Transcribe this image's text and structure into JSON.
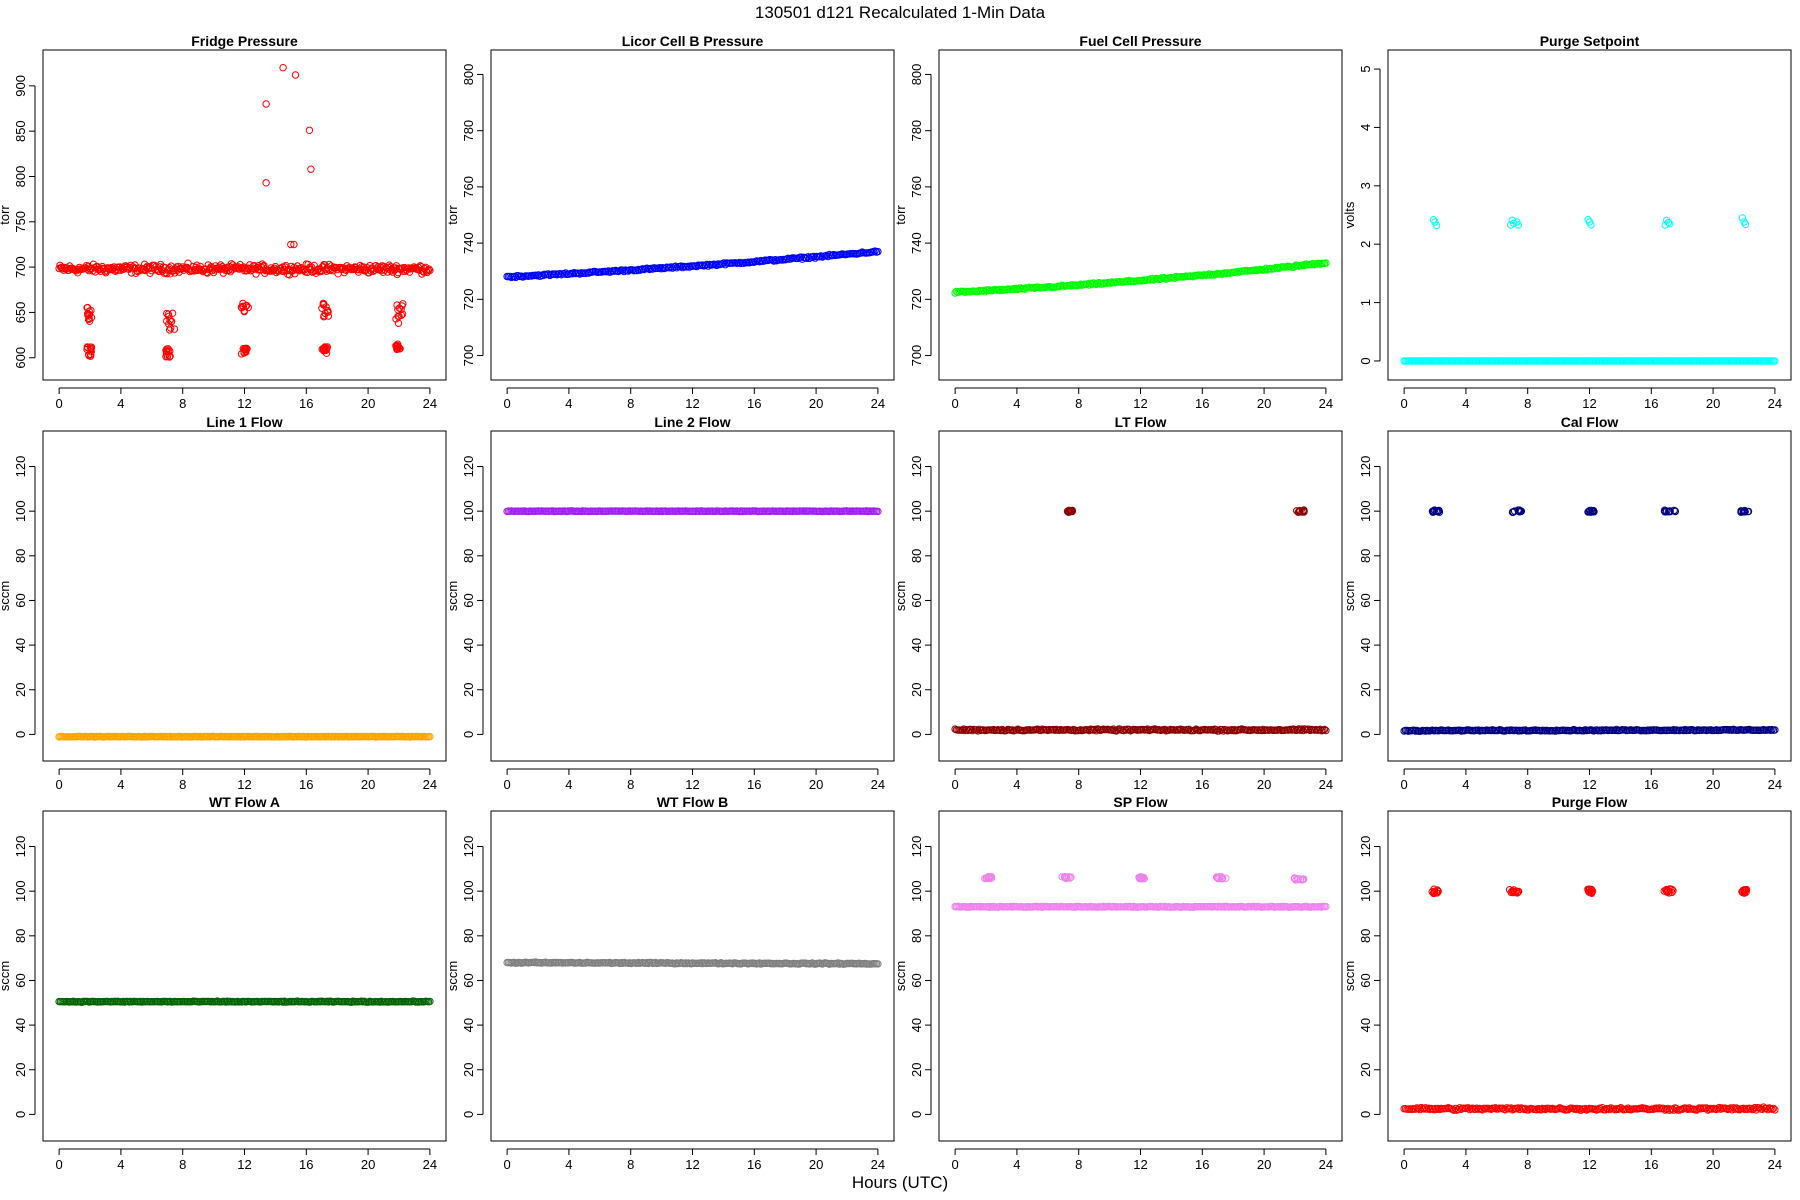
{
  "figure": {
    "title": "130501   d121   Recalculated 1-Min Data",
    "xlabel": "Hours (UTC)"
  },
  "chart_data": [
    {
      "type": "scatter",
      "title": "Fridge Pressure",
      "ylabel": "torr",
      "color": "#ff0000",
      "marker": "open-circle",
      "xlim": [
        0,
        24
      ],
      "ylim": [
        590,
        925
      ],
      "xticks": [
        0,
        4,
        8,
        12,
        16,
        20,
        24
      ],
      "yticks": [
        600,
        650,
        700,
        750,
        800,
        850,
        900
      ],
      "series": [
        {
          "kind": "noise",
          "x_range": [
            0,
            24
          ],
          "mean": 698,
          "spread": 7
        },
        {
          "kind": "cluster",
          "x": [
            1.8,
            2.1
          ],
          "y_range": [
            640,
            658
          ]
        },
        {
          "kind": "cluster",
          "x": [
            1.8,
            2.1
          ],
          "y_range": [
            600,
            612
          ]
        },
        {
          "kind": "cluster",
          "x": [
            6.9,
            7.5
          ],
          "y_range": [
            628,
            658
          ]
        },
        {
          "kind": "cluster",
          "x": [
            6.9,
            7.2
          ],
          "y_range": [
            600,
            610
          ]
        },
        {
          "kind": "cluster",
          "x": [
            11.8,
            12.3
          ],
          "y_range": [
            644,
            660
          ]
        },
        {
          "kind": "cluster",
          "x": [
            11.8,
            12.2
          ],
          "y_range": [
            603,
            612
          ]
        },
        {
          "kind": "cluster",
          "x": [
            17.0,
            17.5
          ],
          "y_range": [
            645,
            660
          ]
        },
        {
          "kind": "cluster",
          "x": [
            17.0,
            17.4
          ],
          "y_range": [
            604,
            612
          ]
        },
        {
          "kind": "cluster",
          "x": [
            21.8,
            22.3
          ],
          "y_range": [
            638,
            665
          ]
        },
        {
          "kind": "cluster",
          "x": [
            21.8,
            22.1
          ],
          "y_range": [
            608,
            615
          ]
        },
        {
          "kind": "points",
          "x": [
            13.4,
            13.4,
            14.5,
            15.0,
            15.3,
            16.2,
            16.3,
            15.2
          ],
          "y": [
            880,
            793,
            920,
            725,
            912,
            851,
            808,
            725
          ]
        }
      ]
    },
    {
      "type": "scatter",
      "title": "Licor Cell B Pressure",
      "ylabel": "torr",
      "color": "#0000ff",
      "marker": "open-circle",
      "xlim": [
        0,
        24
      ],
      "ylim": [
        696,
        804
      ],
      "xticks": [
        0,
        4,
        8,
        12,
        16,
        20,
        24
      ],
      "yticks": [
        700,
        720,
        740,
        760,
        780,
        800
      ],
      "series": [
        {
          "kind": "line",
          "x": [
            0,
            24
          ],
          "y": [
            728,
            737
          ],
          "curve": 0.3,
          "spread": 0.5
        }
      ]
    },
    {
      "type": "scatter",
      "title": "Fuel Cell Pressure",
      "ylabel": "torr",
      "color": "#00ff00",
      "marker": "open-circle",
      "xlim": [
        0,
        24
      ],
      "ylim": [
        696,
        804
      ],
      "xticks": [
        0,
        4,
        8,
        12,
        16,
        20,
        24
      ],
      "yticks": [
        700,
        720,
        740,
        760,
        780,
        800
      ],
      "series": [
        {
          "kind": "line",
          "x": [
            0,
            24
          ],
          "y": [
            722.5,
            733
          ],
          "curve": 0.4,
          "spread": 0.5
        }
      ]
    },
    {
      "type": "scatter",
      "title": "Purge Setpoint",
      "ylabel": "volts",
      "color": "#00ffff",
      "marker": "open-circle",
      "xlim": [
        0,
        24
      ],
      "ylim": [
        -0.1,
        5.1
      ],
      "xticks": [
        0,
        4,
        8,
        12,
        16,
        20,
        24
      ],
      "yticks": [
        0,
        1,
        2,
        3,
        4,
        5
      ],
      "series": [
        {
          "kind": "line",
          "x": [
            0,
            24
          ],
          "y": [
            0,
            0
          ],
          "curve": 0,
          "spread": 0
        },
        {
          "kind": "points",
          "x": [
            1.9,
            2.0,
            2.1,
            6.9,
            7.0,
            7.1,
            7.3,
            7.4,
            11.9,
            12.0,
            12.1,
            16.9,
            17.0,
            17.1,
            17.2,
            21.9,
            22.0,
            22.1
          ],
          "y": [
            2.42,
            2.38,
            2.32,
            2.33,
            2.41,
            2.36,
            2.38,
            2.33,
            2.42,
            2.38,
            2.33,
            2.33,
            2.41,
            2.37,
            2.35,
            2.45,
            2.38,
            2.34
          ]
        }
      ]
    },
    {
      "type": "scatter",
      "title": "Line 1 Flow",
      "ylabel": "sccm",
      "color": "#ffa500",
      "marker": "open-circle",
      "xlim": [
        0,
        24
      ],
      "ylim": [
        -6,
        130
      ],
      "xticks": [
        0,
        4,
        8,
        12,
        16,
        20,
        24
      ],
      "yticks": [
        0,
        20,
        40,
        60,
        80,
        100,
        120
      ],
      "series": [
        {
          "kind": "line",
          "x": [
            0,
            24
          ],
          "y": [
            -1,
            -1
          ],
          "curve": 0,
          "spread": 0.2
        }
      ]
    },
    {
      "type": "scatter",
      "title": "Line 2 Flow",
      "ylabel": "sccm",
      "color": "#a020f0",
      "marker": "open-circle",
      "xlim": [
        0,
        24
      ],
      "ylim": [
        -6,
        130
      ],
      "xticks": [
        0,
        4,
        8,
        12,
        16,
        20,
        24
      ],
      "yticks": [
        0,
        20,
        40,
        60,
        80,
        100,
        120
      ],
      "series": [
        {
          "kind": "line",
          "x": [
            0,
            24
          ],
          "y": [
            100,
            100
          ],
          "curve": 0,
          "spread": 0.2
        }
      ]
    },
    {
      "type": "scatter",
      "title": "LT Flow",
      "ylabel": "sccm",
      "color": "#8b0000",
      "marker": "open-circle",
      "xlim": [
        0,
        24
      ],
      "ylim": [
        -6,
        130
      ],
      "xticks": [
        0,
        4,
        8,
        12,
        16,
        20,
        24
      ],
      "yticks": [
        0,
        20,
        40,
        60,
        80,
        100,
        120
      ],
      "series": [
        {
          "kind": "line",
          "x": [
            0,
            24
          ],
          "y": [
            2,
            2
          ],
          "curve": 0,
          "spread": 0.6
        },
        {
          "kind": "cluster",
          "x": [
            7.1,
            7.6
          ],
          "y_range": [
            99.5,
            100.5
          ]
        },
        {
          "kind": "cluster",
          "x": [
            22.1,
            22.6
          ],
          "y_range": [
            99.5,
            100.5
          ]
        }
      ]
    },
    {
      "type": "scatter",
      "title": "Cal Flow",
      "ylabel": "sccm",
      "color": "#000080",
      "marker": "open-circle",
      "xlim": [
        0,
        24
      ],
      "ylim": [
        -6,
        130
      ],
      "xticks": [
        0,
        4,
        8,
        12,
        16,
        20,
        24
      ],
      "yticks": [
        0,
        20,
        40,
        60,
        80,
        100,
        120
      ],
      "series": [
        {
          "kind": "line",
          "x": [
            0,
            24
          ],
          "y": [
            1.7,
            2.0
          ],
          "curve": 0,
          "spread": 0.4
        },
        {
          "kind": "cluster",
          "x": [
            1.8,
            2.3
          ],
          "y_range": [
            99.5,
            100.5
          ]
        },
        {
          "kind": "cluster",
          "x": [
            6.8,
            7.6
          ],
          "y_range": [
            99.5,
            100.5
          ]
        },
        {
          "kind": "cluster",
          "x": [
            11.8,
            12.3
          ],
          "y_range": [
            99.5,
            100.5
          ]
        },
        {
          "kind": "cluster",
          "x": [
            16.8,
            17.6
          ],
          "y_range": [
            99.5,
            100.5
          ]
        },
        {
          "kind": "cluster",
          "x": [
            21.8,
            22.3
          ],
          "y_range": [
            99.5,
            100.5
          ]
        }
      ]
    },
    {
      "type": "scatter",
      "title": "WT Flow A",
      "ylabel": "sccm",
      "color": "#006400",
      "marker": "open-circle",
      "xlim": [
        0,
        24
      ],
      "ylim": [
        -6,
        130
      ],
      "xticks": [
        0,
        4,
        8,
        12,
        16,
        20,
        24
      ],
      "yticks": [
        0,
        20,
        40,
        60,
        80,
        100,
        120
      ],
      "series": [
        {
          "kind": "line",
          "x": [
            0,
            24
          ],
          "y": [
            50.5,
            50.5
          ],
          "curve": 0,
          "spread": 0.3
        }
      ]
    },
    {
      "type": "scatter",
      "title": "WT Flow B",
      "ylabel": "sccm",
      "color": "#808080",
      "marker": "open-circle",
      "xlim": [
        0,
        24
      ],
      "ylim": [
        -6,
        130
      ],
      "xticks": [
        0,
        4,
        8,
        12,
        16,
        20,
        24
      ],
      "yticks": [
        0,
        20,
        40,
        60,
        80,
        100,
        120
      ],
      "series": [
        {
          "kind": "line",
          "x": [
            0,
            24
          ],
          "y": [
            68,
            67.5
          ],
          "curve": 0,
          "spread": 0.4
        }
      ]
    },
    {
      "type": "scatter",
      "title": "SP Flow",
      "ylabel": "sccm",
      "color": "#ee82ee",
      "marker": "open-circle",
      "xlim": [
        0,
        24
      ],
      "ylim": [
        -6,
        130
      ],
      "xticks": [
        0,
        4,
        8,
        12,
        16,
        20,
        24
      ],
      "yticks": [
        0,
        20,
        40,
        60,
        80,
        100,
        120
      ],
      "series": [
        {
          "kind": "line",
          "x": [
            0,
            24
          ],
          "y": [
            93,
            93
          ],
          "curve": 0,
          "spread": 0.3
        },
        {
          "kind": "cluster",
          "x": [
            1.9,
            2.4
          ],
          "y_range": [
            105.5,
            106.5
          ]
        },
        {
          "kind": "cluster",
          "x": [
            6.9,
            7.6
          ],
          "y_range": [
            105.5,
            106.5
          ]
        },
        {
          "kind": "cluster",
          "x": [
            11.9,
            12.3
          ],
          "y_range": [
            105.5,
            106.5
          ]
        },
        {
          "kind": "cluster",
          "x": [
            16.9,
            17.6
          ],
          "y_range": [
            105.5,
            106.5
          ]
        },
        {
          "kind": "cluster",
          "x": [
            21.9,
            22.6
          ],
          "y_range": [
            105,
            106
          ]
        }
      ]
    },
    {
      "type": "scatter",
      "title": "Purge Flow",
      "ylabel": "sccm",
      "color": "#ff0000",
      "marker": "open-circle",
      "xlim": [
        0,
        24
      ],
      "ylim": [
        -6,
        130
      ],
      "xticks": [
        0,
        4,
        8,
        12,
        16,
        20,
        24
      ],
      "yticks": [
        0,
        20,
        40,
        60,
        80,
        100,
        120
      ],
      "series": [
        {
          "kind": "line",
          "x": [
            0,
            24
          ],
          "y": [
            2.5,
            2.5
          ],
          "curve": 0,
          "spread": 0.9
        },
        {
          "kind": "cluster",
          "x": [
            1.8,
            2.2
          ],
          "y_range": [
            99,
            101
          ]
        },
        {
          "kind": "cluster",
          "x": [
            6.8,
            7.5
          ],
          "y_range": [
            99,
            101
          ]
        },
        {
          "kind": "cluster",
          "x": [
            11.8,
            12.2
          ],
          "y_range": [
            99,
            101
          ]
        },
        {
          "kind": "cluster",
          "x": [
            16.8,
            17.5
          ],
          "y_range": [
            99,
            101
          ]
        },
        {
          "kind": "cluster",
          "x": [
            21.8,
            22.2
          ],
          "y_range": [
            99,
            101
          ]
        }
      ]
    }
  ]
}
